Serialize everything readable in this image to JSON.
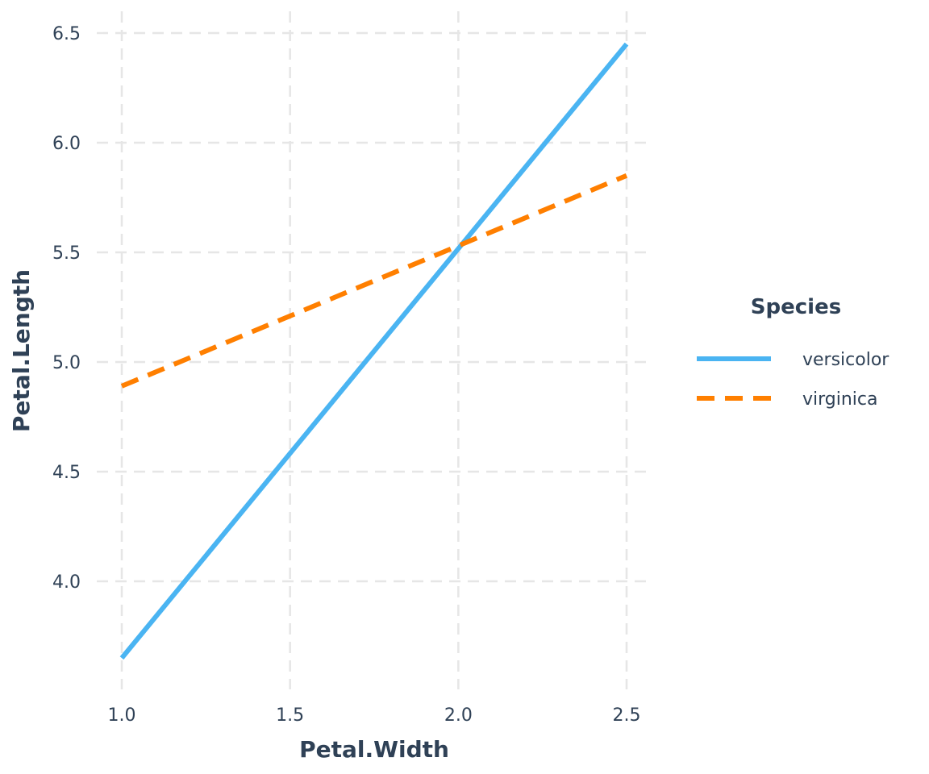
{
  "chart_data": {
    "type": "line",
    "title": "",
    "xlabel": "Petal.Width",
    "ylabel": "Petal.Length",
    "xlim": [
      0.93,
      2.57
    ],
    "ylim": [
      3.5,
      6.6
    ],
    "x_ticks": [
      "1.0",
      "1.5",
      "2.0",
      "2.5"
    ],
    "y_ticks": [
      "4.0",
      "4.5",
      "5.0",
      "5.5",
      "6.0",
      "6.5"
    ],
    "grid": true,
    "legend": {
      "title": "Species",
      "position": "right"
    },
    "series": [
      {
        "name": "versicolor",
        "color": "#4AB4F2",
        "dash": "solid",
        "x": [
          1.0,
          2.5
        ],
        "y": [
          3.65,
          6.45
        ]
      },
      {
        "name": "virginica",
        "color": "#FF7F00",
        "dash": "dashed",
        "x": [
          1.0,
          2.5
        ],
        "y": [
          4.89,
          5.85
        ]
      }
    ]
  }
}
